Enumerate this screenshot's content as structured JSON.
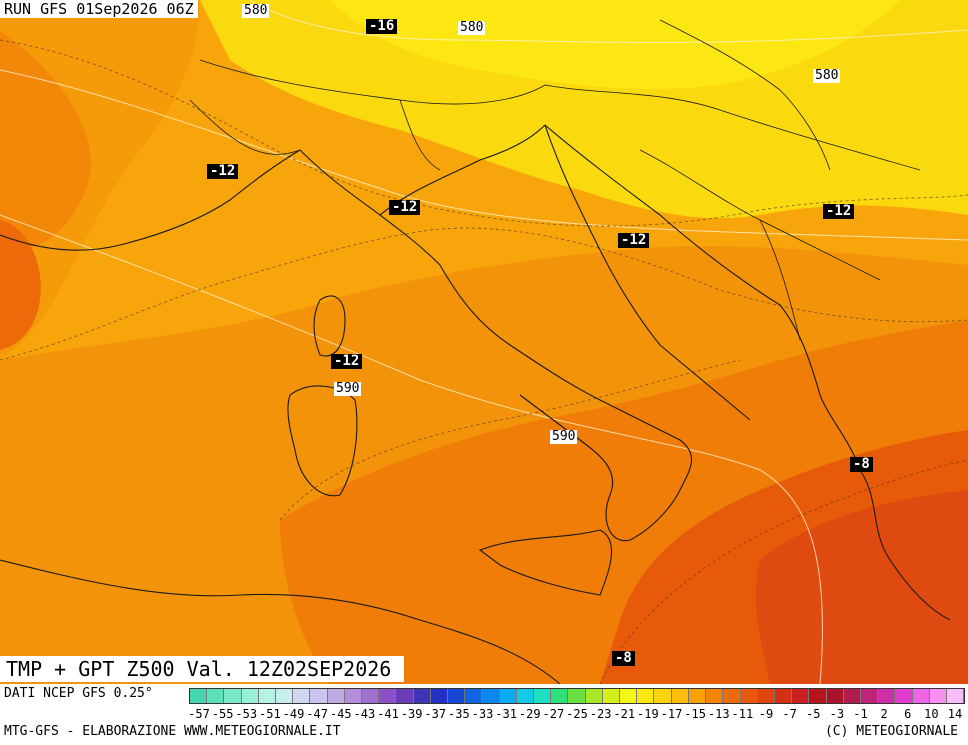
{
  "header": {
    "run": "RUN GFS 01Sep2026 06Z"
  },
  "footer": {
    "valid": "TMP + GPT Z500 Val. 12Z02SEP2026",
    "source": "DATI NCEP GFS 0.25°",
    "credit_left": "MTG-GFS - ELABORAZIONE WWW.METEOGIORNALE.IT",
    "credit_right": "(C) METEOGIORNALE"
  },
  "map": {
    "variable": "temperature 500 hPa + geopotential height",
    "temp_labels": [
      "-16",
      "-12",
      "-12",
      "-12",
      "-12",
      "-12",
      "-12",
      "-8",
      "-8"
    ],
    "geopotential_labels": [
      "580",
      "580",
      "580",
      "590",
      "590"
    ]
  },
  "colorbar": {
    "ticks": [
      "-57",
      "-55",
      "-53",
      "-51",
      "-49",
      "-47",
      "-45",
      "-43",
      "-41",
      "-39",
      "-37",
      "-35",
      "-33",
      "-31",
      "-29",
      "-27",
      "-25",
      "-23",
      "-21",
      "-19",
      "-17",
      "-15",
      "-13",
      "-11",
      "-9",
      "-7",
      "-5",
      "-3",
      "-1",
      "2",
      "6",
      "10",
      "14"
    ],
    "colors": [
      "#44d6ae",
      "#5ee0b8",
      "#7ae8c6",
      "#98efd6",
      "#b6f3e2",
      "#c8eef0",
      "#d0d8f2",
      "#c8c4ee",
      "#c0aae6",
      "#b48edc",
      "#a070d0",
      "#8a52c4",
      "#6a3cb8",
      "#3f34b8",
      "#2330c4",
      "#1646d4",
      "#1066e2",
      "#0c88ec",
      "#10aaf0",
      "#14cae6",
      "#1ce0c0",
      "#30e07a",
      "#6ae040",
      "#a8e628",
      "#d6ee1c",
      "#f6f614",
      "#fce810",
      "#fcd40e",
      "#fcbc0c",
      "#f8a00a",
      "#f48408",
      "#ee6c08",
      "#e85a0a",
      "#e04410",
      "#d43018",
      "#c8201e",
      "#b81420",
      "#a81428",
      "#b01c4c",
      "#c02478",
      "#d02ea8",
      "#e03cd0",
      "#ee64e6",
      "#f890f0",
      "#fcbcf8"
    ],
    "colors_important": {
      "orange": "#f48408",
      "yellow": "#fce810",
      "red": "#e04410"
    }
  }
}
